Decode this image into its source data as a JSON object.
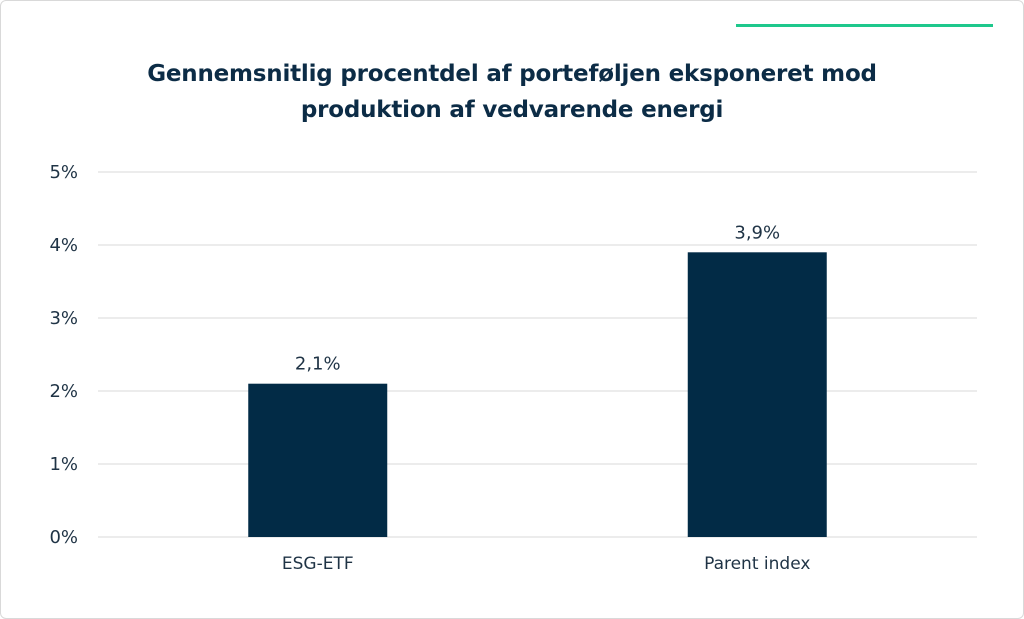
{
  "colors": {
    "bar": "#022b46",
    "accent": "#1ec88c",
    "gridline": "#d9d9d9",
    "text": "#1f3345",
    "title": "#0c2c46"
  },
  "chart_data": {
    "type": "bar",
    "title_lines": [
      "Gennemsnitlig procentdel af porteføljen eksponeret mod",
      "produktion af vedvarende energi"
    ],
    "categories": [
      "ESG-ETF",
      "Parent index"
    ],
    "values": [
      2.1,
      3.9
    ],
    "value_labels": [
      "2,1%",
      "3,9%"
    ],
    "y_ticks": [
      0,
      1,
      2,
      3,
      4,
      5
    ],
    "y_tick_labels": [
      "0%",
      "1%",
      "2%",
      "3%",
      "4%",
      "5%"
    ],
    "ylim": [
      0,
      5
    ],
    "xlabel": "",
    "ylabel": "",
    "grid": true,
    "legend": "none"
  }
}
